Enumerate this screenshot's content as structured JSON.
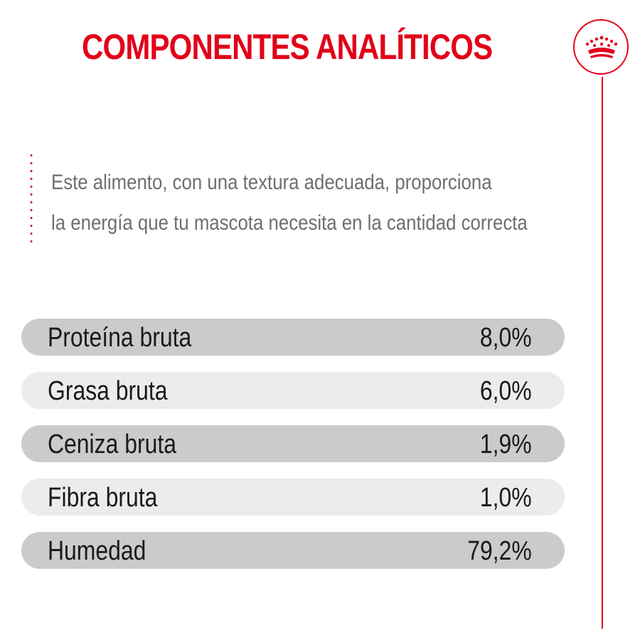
{
  "header": {
    "title": "COMPONENTES ANALÍTICOS",
    "brand_icon": "crown-icon"
  },
  "intro": {
    "line1": "Este alimento, con una textura adecuada, proporciona",
    "line2": "la energía que tu mascota necesita en la cantidad correcta"
  },
  "components": [
    {
      "name": "Proteína bruta",
      "value": "8,0%"
    },
    {
      "name": "Grasa bruta",
      "value": "6,0%"
    },
    {
      "name": "Ceniza bruta",
      "value": "1,9%"
    },
    {
      "name": "Fibra bruta",
      "value": "1,0%"
    },
    {
      "name": "Humedad",
      "value": "79,2%"
    }
  ],
  "colors": {
    "accent": "#e2001a",
    "row_dark": "#cbcbcd",
    "row_light": "#ececec",
    "body_text": "#6e6e6e",
    "table_text": "#1a1a1a"
  }
}
